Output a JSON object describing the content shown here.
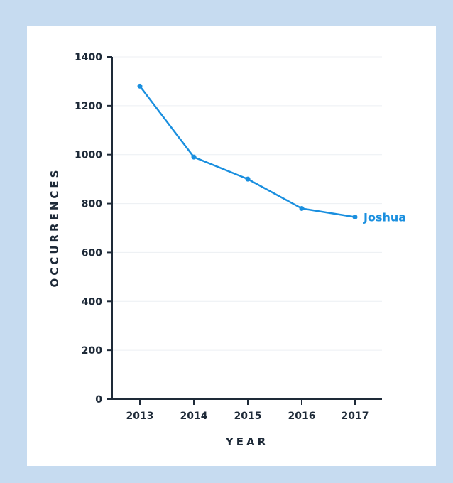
{
  "chart_data": {
    "type": "line",
    "title": "",
    "xlabel": "YEAR",
    "ylabel": "OCCURRENCES",
    "categories": [
      "2013",
      "2014",
      "2015",
      "2016",
      "2017"
    ],
    "ylim": [
      0,
      1400
    ],
    "yticks": [
      0,
      200,
      400,
      600,
      800,
      1000,
      1200,
      1400
    ],
    "grid": true,
    "legend": "inline-end",
    "series": [
      {
        "name": "Joshua",
        "color": "#1a8fdf",
        "values": [
          1280,
          990,
          900,
          780,
          745
        ]
      }
    ]
  }
}
